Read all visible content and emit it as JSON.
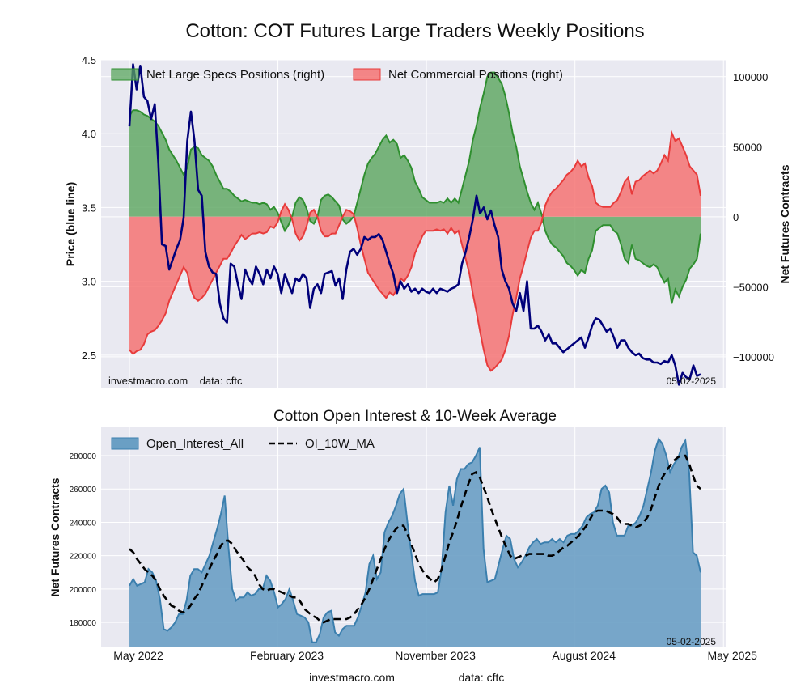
{
  "main_title": "Cotton: COT Futures Large Traders Weekly Positions",
  "footer": {
    "source": "investmacro.com",
    "data": "data: cftc"
  },
  "colors": {
    "background": "#e9e9f1",
    "grid": "#ffffff",
    "specs_fill": "#5aa55e",
    "specs_line": "#2f8f2f",
    "commercial_fill": "#f47373",
    "commercial_line": "#e83b3b",
    "price_line": "#00007a",
    "oi_fill": "#6a9fc4",
    "oi_line": "#3b7fae",
    "ma_line": "#000000"
  },
  "chart_data": [
    {
      "type": "line",
      "title": "",
      "ylabel_left": "Price (blue line)",
      "ylabel_right": "Net Futures Contracts",
      "ylim_left": [
        2.28,
        4.5
      ],
      "ylim_right": [
        -122000,
        112000
      ],
      "yticks_left": [
        2.5,
        3.0,
        3.5,
        4.0,
        4.5
      ],
      "yticks_left_labels": [
        "2.5",
        "3.0",
        "3.5",
        "4.0",
        "4.5"
      ],
      "yticks_right": [
        -100000,
        -50000,
        0,
        50000,
        100000
      ],
      "yticks_right_labels": [
        "−100000",
        "−50000",
        "0",
        "50000",
        "100000"
      ],
      "watermark": "investmacro.com    data: cftc",
      "date_label": "05-02-2025",
      "legend_position": "top",
      "grid": true,
      "series": [
        {
          "name": "Net Large Specs Positions (right)",
          "kind": "area",
          "axis": "right",
          "values": [
            72000,
            76000,
            76000,
            75000,
            73000,
            72000,
            70000,
            68000,
            65000,
            60000,
            55000,
            48000,
            44000,
            40000,
            35000,
            30000,
            35000,
            48000,
            50000,
            49000,
            44000,
            42000,
            40000,
            36000,
            30000,
            25000,
            20000,
            20000,
            18000,
            15000,
            13000,
            11000,
            12000,
            11000,
            10000,
            10000,
            9000,
            10000,
            9000,
            5000,
            7000,
            3000,
            -4000,
            -10000,
            -6000,
            0,
            10000,
            14000,
            12000,
            6000,
            -3000,
            -5000,
            0,
            12000,
            15000,
            16000,
            14000,
            11000,
            8000,
            -2000,
            -5000,
            -3000,
            0,
            10000,
            20000,
            30000,
            38000,
            42000,
            45000,
            50000,
            55000,
            58000,
            53000,
            55000,
            52000,
            42000,
            44000,
            40000,
            35000,
            25000,
            20000,
            14000,
            12000,
            10000,
            10000,
            10000,
            11000,
            10000,
            13000,
            10000,
            13000,
            10000,
            20000,
            30000,
            40000,
            55000,
            65000,
            78000,
            88000,
            100000,
            103000,
            103000,
            99000,
            95000,
            86000,
            74000,
            60000,
            50000,
            36000,
            27000,
            18000,
            10000,
            5000,
            10000,
            2000,
            -10000,
            -16000,
            -20000,
            -22000,
            -25000,
            -28000,
            -33000,
            -35000,
            -38000,
            -42000,
            -38000,
            -40000,
            -30000,
            -24000,
            -10000,
            -8000,
            -6000,
            -6000,
            -6000,
            -10000,
            -12000,
            -20000,
            -30000,
            -33000,
            -20000,
            -30000,
            -31000,
            -33000,
            -35000,
            -36000,
            -34000,
            -36000,
            -42000,
            -47000,
            -44000,
            -62000,
            -52000,
            -57000,
            -50000,
            -45000,
            -37000,
            -34000,
            -30000,
            -12000
          ]
        },
        {
          "name": "Net Commercial Positions (right)",
          "kind": "area",
          "axis": "right",
          "values": [
            -95000,
            -98000,
            -96000,
            -95000,
            -91000,
            -84000,
            -82000,
            -81000,
            -78000,
            -74000,
            -69000,
            -60000,
            -54000,
            -48000,
            -42000,
            -36000,
            -40000,
            -52000,
            -58000,
            -60000,
            -58000,
            -55000,
            -50000,
            -45000,
            -40000,
            -35000,
            -30000,
            -30000,
            -26000,
            -21000,
            -17000,
            -13000,
            -16000,
            -14000,
            -12000,
            -12000,
            -11000,
            -12000,
            -11000,
            -7000,
            -8000,
            -4000,
            4000,
            9000,
            5000,
            -2000,
            -12000,
            -17000,
            -14000,
            -7000,
            3000,
            5000,
            0,
            -10000,
            -14000,
            -14000,
            -12000,
            -12000,
            -6000,
            0,
            5000,
            4000,
            2000,
            -8000,
            -20000,
            -30000,
            -40000,
            -44000,
            -48000,
            -52000,
            -55000,
            -58000,
            -54000,
            -56000,
            -52000,
            -44000,
            -46000,
            -42000,
            -36000,
            -26000,
            -20000,
            -14000,
            -10000,
            -10000,
            -10000,
            -9000,
            -10000,
            -9000,
            -12000,
            -8000,
            -12000,
            -10000,
            -20000,
            -30000,
            -40000,
            -55000,
            -68000,
            -82000,
            -95000,
            -106000,
            -110000,
            -108000,
            -105000,
            -102000,
            -95000,
            -85000,
            -70000,
            -58000,
            -44000,
            -35000,
            -25000,
            -15000,
            -10000,
            -10000,
            -4000,
            8000,
            14000,
            18000,
            20000,
            23000,
            26000,
            30000,
            32000,
            35000,
            40000,
            36000,
            38000,
            28000,
            22000,
            10000,
            8000,
            7000,
            7000,
            7000,
            10000,
            12000,
            18000,
            25000,
            28000,
            16000,
            25000,
            26000,
            29000,
            31000,
            33000,
            31000,
            33000,
            38000,
            44000,
            40000,
            60000,
            54000,
            56000,
            50000,
            44000,
            36000,
            33000,
            30000,
            15000
          ]
        },
        {
          "name": "",
          "kind": "line",
          "axis": "left",
          "values": [
            4.05,
            4.47,
            4.3,
            4.46,
            4.25,
            4.22,
            4.1,
            4.2,
            3.8,
            3.25,
            3.24,
            3.08,
            3.15,
            3.22,
            3.28,
            3.43,
            3.95,
            4.15,
            3.95,
            3.62,
            3.58,
            3.2,
            3.1,
            3.06,
            3.05,
            2.85,
            2.75,
            2.72,
            3.12,
            3.1,
            2.98,
            2.88,
            3.08,
            3.02,
            2.98,
            3.1,
            3.05,
            2.98,
            3.08,
            3.02,
            3.1,
            3.05,
            2.92,
            3.05,
            2.98,
            2.92,
            3.02,
            3.0,
            3.05,
            3.02,
            2.82,
            2.95,
            2.98,
            2.92,
            3.05,
            3.06,
            3.07,
            2.97,
            3.02,
            2.88,
            3.08,
            3.2,
            3.22,
            3.18,
            3.22,
            3.3,
            3.28,
            3.3,
            3.3,
            3.32,
            3.28,
            3.2,
            3.12,
            3.05,
            2.92,
            3.0,
            2.95,
            2.98,
            2.93,
            2.95,
            2.92,
            2.95,
            2.93,
            2.92,
            2.95,
            2.92,
            2.95,
            2.94,
            2.93,
            2.95,
            2.96,
            2.98,
            3.12,
            3.2,
            3.3,
            3.42,
            3.58,
            3.46,
            3.5,
            3.42,
            3.48,
            3.38,
            3.3,
            3.08,
            3.0,
            2.95,
            2.85,
            2.8,
            2.92,
            2.8,
            3.0,
            2.68,
            2.68,
            2.7,
            2.66,
            2.6,
            2.64,
            2.58,
            2.58,
            2.55,
            2.52,
            2.54,
            2.56,
            2.58,
            2.6,
            2.62,
            2.55,
            2.62,
            2.7,
            2.75,
            2.74,
            2.7,
            2.66,
            2.68,
            2.62,
            2.55,
            2.6,
            2.6,
            2.55,
            2.52,
            2.5,
            2.51,
            2.48,
            2.47,
            2.47,
            2.45,
            2.45,
            2.44,
            2.46,
            2.45,
            2.5,
            2.43,
            2.3,
            2.38,
            2.35,
            2.34,
            2.43,
            2.36,
            2.37,
            2.4,
            2.38,
            2.37,
            2.39,
            2.37
          ]
        }
      ]
    },
    {
      "type": "area",
      "title": "Cotton Open Interest & 10-Week Average",
      "ylabel": "Net Futures Contracts",
      "xlabel": "",
      "ylim": [
        165000,
        297000
      ],
      "yticks": [
        180000,
        200000,
        220000,
        240000,
        260000,
        280000
      ],
      "yticks_labels": [
        "180000",
        "200000",
        "220000",
        "240000",
        "260000",
        "280000"
      ],
      "x_tick_labels": [
        "May 2022",
        "February 2023",
        "November 2023",
        "August 2024",
        "May 2025"
      ],
      "x_tick_index": [
        0,
        39,
        78,
        117,
        156
      ],
      "date_label": "05-02-2025",
      "legend_position": "top-left",
      "grid": true,
      "series": [
        {
          "name": "Open_Interest_All",
          "kind": "area",
          "values": [
            202000,
            206000,
            202000,
            203000,
            204000,
            212000,
            210000,
            205000,
            194000,
            176000,
            175000,
            177000,
            180000,
            185000,
            185000,
            193000,
            208000,
            212000,
            212000,
            210000,
            215000,
            220000,
            228000,
            236000,
            245000,
            256000,
            225000,
            200000,
            193000,
            195000,
            195000,
            198000,
            196000,
            197000,
            200000,
            200000,
            208000,
            205000,
            198000,
            189000,
            191000,
            194000,
            200000,
            193000,
            185000,
            184000,
            183000,
            180000,
            168000,
            168000,
            173000,
            183000,
            186000,
            187000,
            174000,
            172000,
            176000,
            178000,
            178000,
            178000,
            183000,
            190000,
            198000,
            215000,
            220000,
            206000,
            210000,
            234000,
            240000,
            244000,
            250000,
            257000,
            260000,
            240000,
            222000,
            205000,
            196000,
            197000,
            197000,
            197000,
            197000,
            198000,
            212000,
            246000,
            262000,
            250000,
            266000,
            272000,
            272000,
            275000,
            276000,
            280000,
            285000,
            224000,
            204000,
            205000,
            206000,
            215000,
            224000,
            232000,
            230000,
            218000,
            213000,
            216000,
            220000,
            225000,
            228000,
            230000,
            227000,
            228000,
            228000,
            230000,
            228000,
            230000,
            228000,
            232000,
            233000,
            233000,
            235000,
            238000,
            243000,
            245000,
            246000,
            250000,
            260000,
            262000,
            258000,
            240000,
            232000,
            232000,
            232000,
            238000,
            238000,
            240000,
            244000,
            250000,
            260000,
            270000,
            283000,
            290000,
            287000,
            280000,
            270000,
            275000,
            278000,
            285000,
            289000,
            270000,
            222000,
            220000,
            210000
          ]
        },
        {
          "name": "OI_10W_MA",
          "kind": "line",
          "values": [
            224000,
            222000,
            218000,
            215000,
            212000,
            210000,
            208000,
            205000,
            200000,
            196000,
            193000,
            190000,
            189000,
            187000,
            186000,
            187000,
            190000,
            194000,
            197000,
            202000,
            207000,
            212000,
            217000,
            221000,
            226000,
            229000,
            229000,
            227000,
            223000,
            220000,
            217000,
            213000,
            211000,
            208000,
            203000,
            200000,
            199000,
            200000,
            200000,
            199000,
            198000,
            197000,
            196000,
            195000,
            195000,
            192000,
            188000,
            186000,
            184000,
            183000,
            181000,
            180000,
            181000,
            182000,
            182000,
            182000,
            182000,
            182000,
            183000,
            185000,
            188000,
            191000,
            195000,
            200000,
            206000,
            212000,
            218000,
            224000,
            229000,
            233000,
            236000,
            238000,
            238000,
            233000,
            227000,
            221000,
            215000,
            211000,
            208000,
            206000,
            204000,
            206000,
            212000,
            220000,
            228000,
            234000,
            241000,
            249000,
            256000,
            263000,
            269000,
            270000,
            267000,
            261000,
            255000,
            248000,
            242000,
            236000,
            230000,
            225000,
            220000,
            218000,
            219000,
            220000,
            220000,
            221000,
            221000,
            221000,
            221000,
            221000,
            220000,
            220000,
            221000,
            223000,
            225000,
            226000,
            228000,
            230000,
            232000,
            235000,
            238000,
            242000,
            246000,
            247000,
            247000,
            247000,
            246000,
            245000,
            243000,
            240000,
            239000,
            239000,
            238000,
            237000,
            238000,
            240000,
            243000,
            248000,
            255000,
            262000,
            267000,
            271000,
            274000,
            277000,
            279000,
            280000,
            280000,
            275000,
            268000,
            262000,
            260000
          ]
        }
      ]
    }
  ]
}
